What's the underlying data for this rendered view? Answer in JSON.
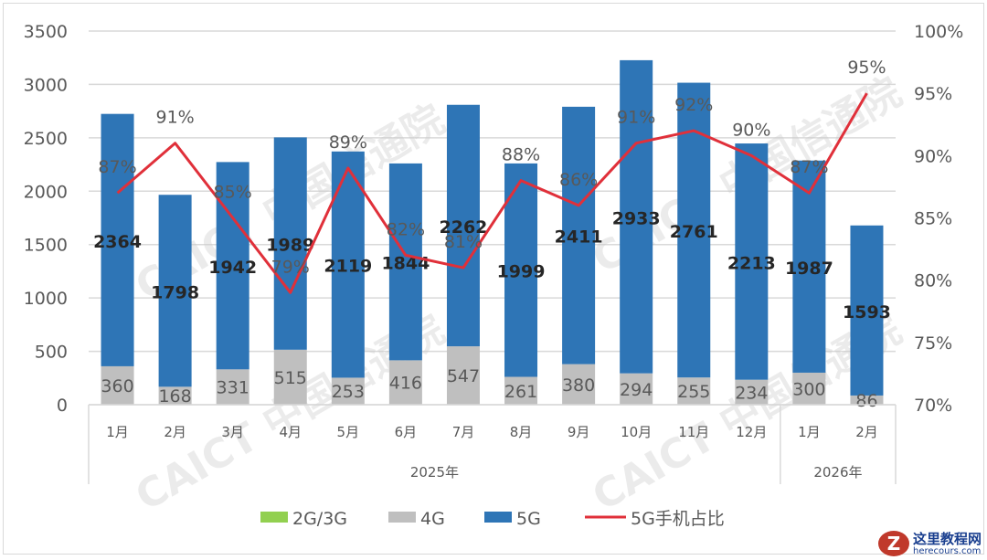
{
  "chart_data": {
    "type": "bar",
    "stacked": true,
    "categories": [
      "1月",
      "2月",
      "3月",
      "4月",
      "5月",
      "6月",
      "7月",
      "8月",
      "9月",
      "10月",
      "11月",
      "12月",
      "1月",
      "2月"
    ],
    "year_groups": [
      {
        "label": "2025年",
        "count": 12
      },
      {
        "label": "2026年",
        "count": 2
      }
    ],
    "series": [
      {
        "name": "2G/3G",
        "color": "#92d050",
        "values": [
          0,
          0,
          0,
          0,
          0,
          0,
          0,
          0,
          0,
          0,
          0,
          0,
          0,
          0
        ]
      },
      {
        "name": "4G",
        "color": "#bfbfbf",
        "values": [
          360,
          168,
          331,
          515,
          253,
          416,
          547,
          261,
          380,
          294,
          255,
          234,
          300,
          86
        ]
      },
      {
        "name": "5G",
        "color": "#2e75b6",
        "values": [
          2364,
          1798,
          1942,
          1989,
          2119,
          1844,
          2262,
          1999,
          2411,
          2933,
          2761,
          2213,
          1987,
          1593
        ]
      }
    ],
    "line_series": {
      "name": "5G手机占比",
      "color": "#e0303a",
      "axis": "right",
      "values": [
        87,
        91,
        85,
        79,
        89,
        82,
        81,
        88,
        86,
        91,
        92,
        90,
        87,
        95
      ],
      "labels": [
        "87%",
        "91%",
        "85%",
        "79%",
        "89%",
        "82%",
        "81%",
        "88%",
        "86%",
        "91%",
        "92%",
        "90%",
        "87%",
        "95%"
      ]
    },
    "left_axis": {
      "ylim": [
        0,
        3500
      ],
      "ticks": [
        "0",
        "500",
        "1000",
        "1500",
        "2000",
        "2500",
        "3000",
        "3500"
      ]
    },
    "right_axis": {
      "ylim": [
        70,
        100
      ],
      "ticks": [
        "70%",
        "75%",
        "80%",
        "85%",
        "90%",
        "95%",
        "100%"
      ]
    },
    "grid": true,
    "legend": "bottom",
    "watermark": "CAICT 中国信通院"
  },
  "brand": {
    "name": "这里教程网",
    "url": "herecours.com",
    "mark": "Z"
  }
}
